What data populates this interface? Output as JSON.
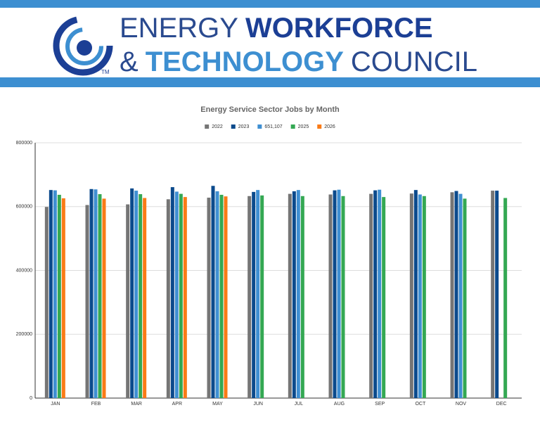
{
  "header": {
    "word1": "ENERGY",
    "word2": "WORKFORCE",
    "word3": "&",
    "word4": "TECHNOLOGY",
    "word5": "COUNCIL",
    "mark": "TM"
  },
  "chart_data": {
    "type": "bar",
    "title": "Energy Service Sector Jobs by Month",
    "categories": [
      "JAN",
      "FEB",
      "MAR",
      "APR",
      "MAY",
      "JUN",
      "JUL",
      "AUG",
      "SEP",
      "OCT",
      "NOV",
      "DEC"
    ],
    "series": [
      {
        "name": "2022",
        "color": "#757575",
        "values": [
          599000,
          605000,
          607000,
          623000,
          628000,
          633000,
          640000,
          638000,
          640000,
          641000,
          645000,
          650000
        ]
      },
      {
        "name": "2023",
        "color": "#0b4a8c",
        "values": [
          652000,
          655000,
          657000,
          661000,
          665000,
          646000,
          648000,
          651000,
          651000,
          652000,
          649000,
          650000
        ]
      },
      {
        "name": "651,107",
        "color": "#3f8fd2",
        "values": [
          651000,
          654000,
          650000,
          647000,
          648000,
          652000,
          652000,
          653000,
          653000,
          638000,
          640000,
          null
        ]
      },
      {
        "name": "2025",
        "color": "#34a853",
        "values": [
          637000,
          639000,
          639000,
          640000,
          637000,
          635000,
          633000,
          633000,
          630000,
          633000,
          625000,
          627000
        ]
      },
      {
        "name": "2026",
        "color": "#fa7b17",
        "values": [
          626000,
          625000,
          627000,
          630000,
          632000,
          null,
          null,
          null,
          null,
          null,
          null,
          null
        ]
      }
    ],
    "ylim": [
      0,
      800000
    ],
    "yticks": [
      0,
      200000,
      400000,
      600000,
      800000
    ],
    "grid": true,
    "legend": "top"
  }
}
